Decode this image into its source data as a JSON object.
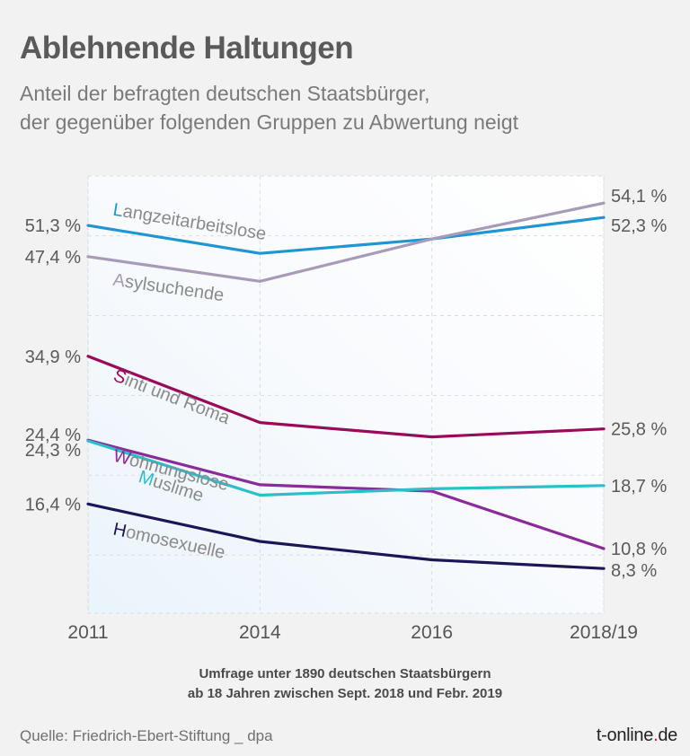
{
  "header": {
    "title": "Ablehnende Haltungen",
    "subtitle_line1": "Anteil der befragten deutschen Staatsbürger,",
    "subtitle_line2": "der gegenüber folgenden Gruppen zu Abwertung neigt"
  },
  "footer": {
    "note_line1": "Umfrage unter 1890 deutschen Staatsbürgern",
    "note_line2": "ab 18 Jahren zwischen Sept. 2018 und Febr. 2019",
    "source": "Quelle: Friedrich-Ebert-Stiftung  _ dpa",
    "brand_main": "t-online",
    "brand_dot": ".",
    "brand_tld": "de",
    "brand_dot_color": "#e20074"
  },
  "chart_data": {
    "type": "line",
    "title": "Ablehnende Haltungen",
    "xlabel": "",
    "ylabel": "",
    "x": [
      "2011",
      "2014",
      "2016",
      "2018/19"
    ],
    "ylim": [
      2.7,
      57.5
    ],
    "gridlines_y": [
      10,
      20,
      30,
      40,
      50
    ],
    "grid": true,
    "grid_style": "dashed",
    "series": [
      {
        "name": "Langzeitarbeitslose",
        "initial": "L",
        "rest": "angzeitarbeitslose",
        "color": "#1f96d3",
        "values": [
          51.3,
          47.8,
          49.6,
          52.3
        ],
        "start_label": "51,3 %",
        "end_label": "52,3 %"
      },
      {
        "name": "Asylsuchende",
        "initial": "A",
        "rest": "sylsuchende",
        "color": "#a89bb8",
        "values": [
          47.4,
          44.3,
          49.6,
          54.1
        ],
        "start_label": "47,4 %",
        "end_label": "54,1 %"
      },
      {
        "name": "Sinti und Roma",
        "initial": "S",
        "rest": "inti und Roma",
        "color": "#9b0a5a",
        "values": [
          34.9,
          26.6,
          24.8,
          25.8
        ],
        "start_label": "34,9 %",
        "end_label": "25,8 %"
      },
      {
        "name": "Wohnungslose",
        "initial": "W",
        "rest": "ohnungslose",
        "color": "#8b2a9a",
        "values": [
          24.4,
          18.8,
          18.0,
          10.8
        ],
        "start_label": "24,4 %",
        "end_label": "10,8 %"
      },
      {
        "name": "Muslime",
        "initial": "M",
        "rest": "uslime",
        "color": "#2bbfcb",
        "values": [
          24.3,
          17.5,
          18.3,
          18.7
        ],
        "start_label": "24,3 %",
        "end_label": "18,7 %"
      },
      {
        "name": "Homosexuelle",
        "initial": "H",
        "rest": "omosexuelle",
        "color": "#1c1558",
        "values": [
          16.4,
          11.7,
          9.4,
          8.3
        ],
        "start_label": "16,4 %",
        "end_label": "8,3 %"
      }
    ],
    "label_color": "#8a8a8a",
    "value_label_color": "#5a5a5a"
  }
}
